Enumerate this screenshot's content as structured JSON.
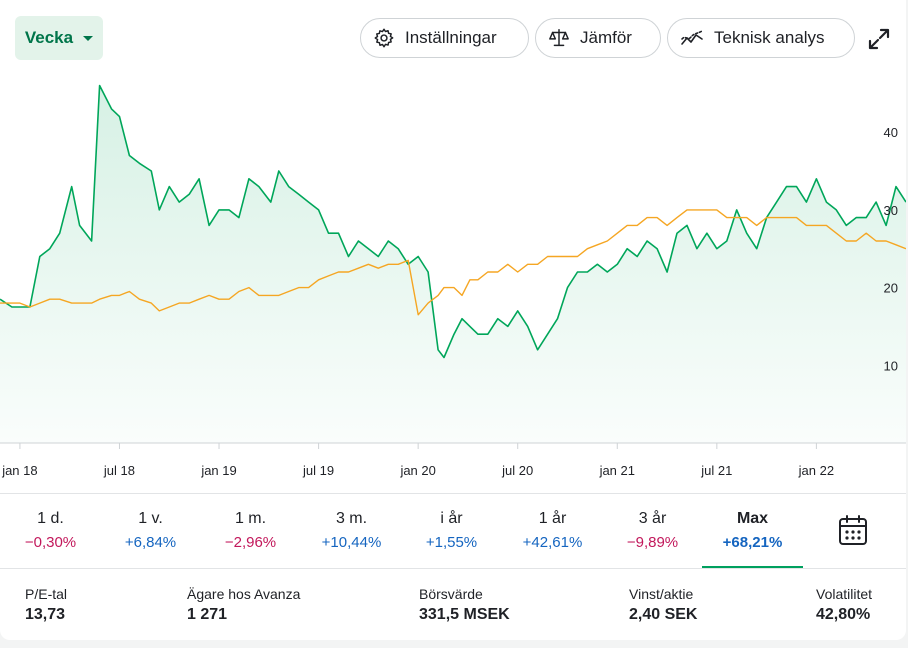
{
  "toolbar": {
    "period_label": "Vecka",
    "settings_label": "Inställningar",
    "compare_label": "Jämför",
    "technical_label": "Teknisk analys",
    "icons": {
      "period": "chevron-down-icon",
      "settings": "gear-icon",
      "compare": "scale-icon",
      "technical": "trend-line-icon",
      "expand": "expand-icon"
    }
  },
  "chart_data": {
    "type": "line",
    "x_tick_labels": [
      "jan 18",
      "jul 18",
      "jan 19",
      "jul 19",
      "jan 20",
      "jul 20",
      "jan 21",
      "jul 21",
      "jan 22"
    ],
    "y_tick_labels": [
      "40",
      "30",
      "20",
      "10"
    ],
    "y_ticks": [
      40,
      30,
      20,
      10
    ],
    "ylim": [
      0,
      48
    ],
    "xlim": [
      2017.9,
      2022.45
    ],
    "area_fill": true,
    "grid": false,
    "series": [
      {
        "color": "#00a65a",
        "x": [
          2017.9,
          2017.96,
          2018.0,
          2018.05,
          2018.1,
          2018.15,
          2018.2,
          2018.26,
          2018.3,
          2018.36,
          2018.4,
          2018.46,
          2018.5,
          2018.55,
          2018.6,
          2018.66,
          2018.7,
          2018.75,
          2018.8,
          2018.85,
          2018.9,
          2018.95,
          2019.0,
          2019.05,
          2019.1,
          2019.15,
          2019.2,
          2019.26,
          2019.3,
          2019.35,
          2019.4,
          2019.45,
          2019.5,
          2019.55,
          2019.6,
          2019.65,
          2019.7,
          2019.75,
          2019.8,
          2019.85,
          2019.9,
          2019.95,
          2020.0,
          2020.05,
          2020.1,
          2020.13,
          2020.18,
          2020.22,
          2020.26,
          2020.3,
          2020.35,
          2020.4,
          2020.45,
          2020.5,
          2020.55,
          2020.6,
          2020.65,
          2020.7,
          2020.75,
          2020.8,
          2020.85,
          2020.9,
          2020.95,
          2021.0,
          2021.05,
          2021.1,
          2021.15,
          2021.2,
          2021.25,
          2021.3,
          2021.35,
          2021.4,
          2021.45,
          2021.5,
          2021.55,
          2021.6,
          2021.65,
          2021.7,
          2021.75,
          2021.8,
          2021.85,
          2021.9,
          2021.95,
          2022.0,
          2022.05,
          2022.1,
          2022.15,
          2022.2,
          2022.25,
          2022.3,
          2022.35,
          2022.4,
          2022.45
        ],
        "y": [
          18.5,
          17.5,
          17.5,
          17.5,
          24,
          25,
          27,
          33,
          28,
          26,
          46,
          43,
          42,
          37,
          36,
          35,
          30,
          33,
          31,
          32,
          34,
          28,
          30,
          30,
          29,
          34,
          33,
          31,
          35,
          33,
          32,
          31,
          30,
          27,
          27,
          24,
          26,
          25,
          24,
          26,
          25,
          23,
          24,
          22,
          12,
          11,
          14,
          16,
          15,
          14,
          14,
          16,
          15,
          17,
          15,
          12,
          14,
          16,
          20,
          22,
          22,
          23,
          22,
          23,
          25,
          24,
          26,
          25,
          22,
          27,
          28,
          25,
          27,
          25,
          26,
          30,
          27,
          25,
          29,
          31,
          33,
          33,
          31,
          34,
          31,
          30,
          28,
          29,
          29,
          31,
          28,
          33,
          31
        ],
        "values_note_fill": "green line with light green area fill"
      },
      {
        "color": "#f5a623",
        "x": [
          2017.9,
          2017.96,
          2018.0,
          2018.05,
          2018.1,
          2018.15,
          2018.2,
          2018.26,
          2018.3,
          2018.36,
          2018.4,
          2018.46,
          2018.5,
          2018.55,
          2018.6,
          2018.66,
          2018.7,
          2018.75,
          2018.8,
          2018.85,
          2018.9,
          2018.95,
          2019.0,
          2019.05,
          2019.1,
          2019.15,
          2019.2,
          2019.26,
          2019.3,
          2019.35,
          2019.4,
          2019.45,
          2019.5,
          2019.55,
          2019.6,
          2019.65,
          2019.7,
          2019.75,
          2019.8,
          2019.85,
          2019.9,
          2019.95,
          2020.0,
          2020.05,
          2020.1,
          2020.13,
          2020.18,
          2020.22,
          2020.26,
          2020.3,
          2020.35,
          2020.4,
          2020.45,
          2020.5,
          2020.55,
          2020.6,
          2020.65,
          2020.7,
          2020.75,
          2020.8,
          2020.85,
          2020.9,
          2020.95,
          2021.0,
          2021.05,
          2021.1,
          2021.15,
          2021.2,
          2021.25,
          2021.3,
          2021.35,
          2021.4,
          2021.45,
          2021.5,
          2021.55,
          2021.6,
          2021.65,
          2021.7,
          2021.75,
          2021.8,
          2021.85,
          2021.9,
          2021.95,
          2022.0,
          2022.05,
          2022.1,
          2022.15,
          2022.2,
          2022.25,
          2022.3,
          2022.35,
          2022.4,
          2022.45
        ],
        "y": [
          18,
          18,
          18,
          17.5,
          18,
          18.5,
          18.5,
          18,
          18,
          18,
          18.5,
          19,
          19,
          19.5,
          18.5,
          18,
          17,
          17.5,
          18,
          18,
          18.5,
          19,
          18.5,
          18.5,
          19.5,
          20,
          19,
          19,
          19,
          19.5,
          20,
          20,
          21,
          21.5,
          22,
          22,
          22.5,
          23,
          22.5,
          23,
          23,
          23.5,
          16.5,
          18,
          19,
          20,
          20,
          19,
          21,
          21,
          22,
          22,
          23,
          22,
          23,
          23,
          24,
          24,
          24,
          24,
          25,
          25.5,
          26,
          27,
          28,
          28,
          29,
          29,
          28,
          29,
          30,
          30,
          30,
          30,
          29,
          29,
          29,
          28,
          29,
          29,
          29,
          29,
          28,
          28,
          28,
          27,
          26,
          26,
          27,
          26,
          26,
          25.5,
          25
        ],
        "values_note_fill": "orange comparison line"
      }
    ]
  },
  "periods": [
    {
      "label": "1 d.",
      "value": "−0,30%",
      "sign": "neg"
    },
    {
      "label": "1 v.",
      "value": "+6,84%",
      "sign": "pos"
    },
    {
      "label": "1 m.",
      "value": "−2,96%",
      "sign": "neg"
    },
    {
      "label": "3 m.",
      "value": "+10,44%",
      "sign": "pos"
    },
    {
      "label": "i år",
      "value": "+1,55%",
      "sign": "pos"
    },
    {
      "label": "1 år",
      "value": "+42,61%",
      "sign": "pos"
    },
    {
      "label": "3 år",
      "value": "−9,89%",
      "sign": "neg"
    },
    {
      "label": "Max",
      "value": "+68,21%",
      "sign": "pos",
      "active": true
    }
  ],
  "calendar_icon": "calendar-icon",
  "figures": [
    {
      "label": "P/E-tal",
      "value": "13,73"
    },
    {
      "label": "Ägare hos Avanza",
      "value": "1 271"
    },
    {
      "label": "Börsvärde",
      "value": "331,5 MSEK"
    },
    {
      "label": "Vinst/aktie",
      "value": "2,40 SEK"
    },
    {
      "label": "Volatilitet",
      "value": "42,80%"
    }
  ]
}
